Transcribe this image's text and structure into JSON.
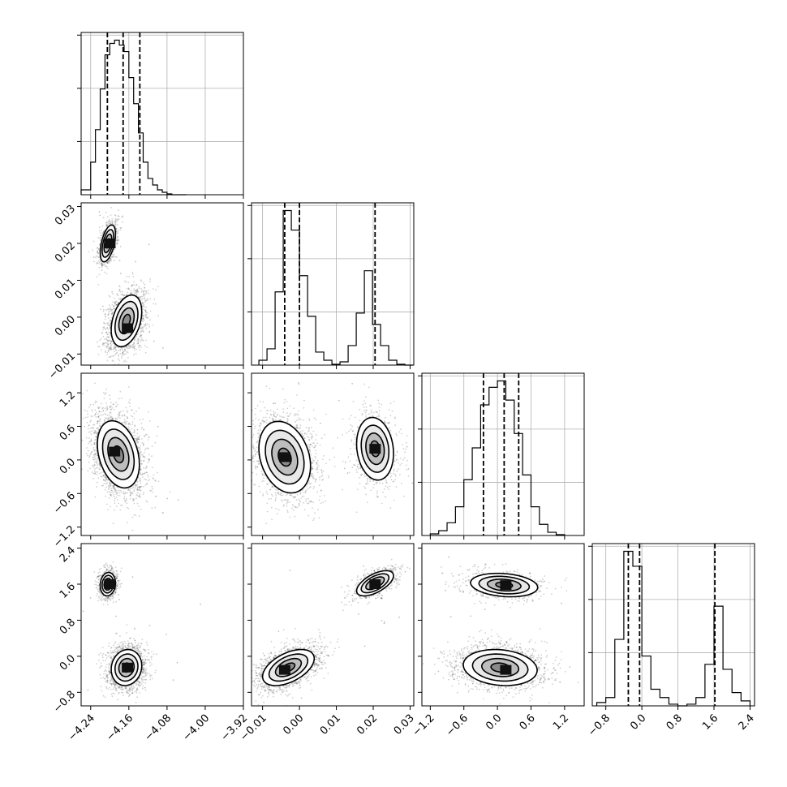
{
  "chart_data": {
    "type": "corner",
    "title": "",
    "parameters": [
      {
        "range": [
          -4.26,
          -3.92
        ],
        "ticks": [
          -4.24,
          -4.16,
          -4.08,
          -4.0,
          -3.92
        ],
        "tick_labels": [
          "−4.24",
          "−4.16",
          "−4.08",
          "−4.00",
          "−3.92"
        ],
        "hist": {
          "bin_edges": [
            -4.26,
            -4.24,
            -4.23,
            -4.22,
            -4.21,
            -4.2,
            -4.19,
            -4.18,
            -4.17,
            -4.16,
            -4.15,
            -4.14,
            -4.13,
            -4.12,
            -4.11,
            -4.1,
            -4.09,
            -4.08,
            -4.07,
            -4.06,
            -4.05,
            -4.04
          ],
          "counts": [
            0.03,
            0.2,
            0.4,
            0.65,
            0.86,
            0.93,
            0.95,
            0.92,
            0.88,
            0.72,
            0.56,
            0.38,
            0.2,
            0.1,
            0.06,
            0.03,
            0.015,
            0.005,
            0,
            0,
            0
          ]
        },
        "quantiles": [
          -4.205,
          -4.172,
          -4.137
        ]
      },
      {
        "range": [
          -0.013,
          0.031
        ],
        "ticks": [
          -0.01,
          0.0,
          0.01,
          0.02,
          0.03
        ],
        "tick_labels": [
          "−0.01",
          "0.00",
          "0.01",
          "0.02",
          "0.03"
        ],
        "hist": {
          "bin_edges": [
            -0.011,
            -0.0088,
            -0.0066,
            -0.0044,
            -0.0022,
            0.0,
            0.0022,
            0.0044,
            0.0066,
            0.0088,
            0.011,
            0.0132,
            0.0154,
            0.0176,
            0.0198,
            0.022,
            0.0242,
            0.0264,
            0.0286,
            0.0308
          ],
          "counts": [
            0.03,
            0.1,
            0.45,
            0.95,
            0.83,
            0.55,
            0.3,
            0.08,
            0.03,
            0.005,
            0.02,
            0.12,
            0.32,
            0.58,
            0.25,
            0.12,
            0.03,
            0.005,
            0
          ]
        },
        "quantiles": [
          -0.004,
          0.0,
          0.0205
        ]
      },
      {
        "range": [
          -1.35,
          1.55
        ],
        "ticks": [
          -1.2,
          -0.6,
          0.0,
          0.6,
          1.2
        ],
        "tick_labels": [
          "−1.2",
          "−0.6",
          "0.0",
          "0.6",
          "1.2"
        ],
        "hist": {
          "bin_edges": [
            -1.2,
            -1.05,
            -0.9,
            -0.75,
            -0.6,
            -0.45,
            -0.3,
            -0.15,
            0.0,
            0.15,
            0.3,
            0.45,
            0.6,
            0.75,
            0.9,
            1.05,
            1.2
          ],
          "counts": [
            0.01,
            0.03,
            0.08,
            0.18,
            0.35,
            0.55,
            0.82,
            0.93,
            0.97,
            0.85,
            0.64,
            0.38,
            0.18,
            0.07,
            0.02,
            0.005
          ]
        },
        "quantiles": [
          -0.25,
          0.12,
          0.38
        ]
      },
      {
        "range": [
          -1.1,
          2.5
        ],
        "ticks": [
          -0.8,
          0.0,
          0.8,
          1.6,
          2.4
        ],
        "tick_labels": [
          "−0.8",
          "0.0",
          "0.8",
          "1.6",
          "2.4"
        ],
        "hist": {
          "bin_edges": [
            -1.0,
            -0.8,
            -0.6,
            -0.4,
            -0.2,
            0.0,
            0.2,
            0.4,
            0.6,
            0.8,
            1.0,
            1.2,
            1.4,
            1.6,
            1.8,
            2.0,
            2.2,
            2.4
          ],
          "counts": [
            0.02,
            0.05,
            0.4,
            0.93,
            0.84,
            0.3,
            0.1,
            0.05,
            0.01,
            0.0,
            0.01,
            0.05,
            0.25,
            0.6,
            0.22,
            0.08,
            0.03
          ]
        },
        "quantiles": [
          -0.3,
          -0.05,
          1.62
        ]
      }
    ],
    "hist_y_ticks": 3,
    "pairs": [
      {
        "row": 1,
        "col": 0,
        "modes": [
          {
            "mean": [
              -4.204,
              0.02
            ],
            "sd": [
              0.008,
              0.0025
            ],
            "rho": 0.5,
            "weight": 0.3,
            "peak": [
              -4.2,
              0.02
            ]
          },
          {
            "mean": [
              -4.165,
              -0.001
            ],
            "sd": [
              0.016,
              0.0035
            ],
            "rho": 0.35,
            "weight": 0.7,
            "peak": [
              -4.163,
              -0.003
            ]
          }
        ]
      },
      {
        "row": 2,
        "col": 0,
        "modes": [
          {
            "mean": [
              -4.182,
              0.1
            ],
            "sd": [
              0.022,
              0.3
            ],
            "rho": -0.3,
            "weight": 1.0,
            "peak": [
              -4.19,
              0.15
            ]
          }
        ]
      },
      {
        "row": 2,
        "col": 1,
        "modes": [
          {
            "mean": [
              -0.004,
              0.05
            ],
            "sd": [
              0.0035,
              0.32
            ],
            "rho": -0.25,
            "weight": 0.7,
            "peak": [
              -0.004,
              0.05
            ]
          },
          {
            "mean": [
              0.0205,
              0.2
            ],
            "sd": [
              0.0025,
              0.28
            ],
            "rho": -0.15,
            "weight": 0.3,
            "peak": [
              0.0205,
              0.2
            ]
          }
        ]
      },
      {
        "row": 3,
        "col": 0,
        "modes": [
          {
            "mean": [
              -4.204,
              1.6
            ],
            "sd": [
              0.008,
              0.13
            ],
            "rho": 0.1,
            "weight": 0.3,
            "peak": [
              -4.2,
              1.6
            ]
          },
          {
            "mean": [
              -4.165,
              -0.25
            ],
            "sd": [
              0.016,
              0.2
            ],
            "rho": 0.1,
            "weight": 0.7,
            "peak": [
              -4.163,
              -0.25
            ]
          }
        ]
      },
      {
        "row": 3,
        "col": 1,
        "modes": [
          {
            "mean": [
              -0.003,
              -0.25
            ],
            "sd": [
              0.0035,
              0.2
            ],
            "rho": 0.5,
            "weight": 0.7,
            "peak": [
              -0.004,
              -0.3
            ]
          },
          {
            "mean": [
              0.0205,
              1.62
            ],
            "sd": [
              0.0025,
              0.14
            ],
            "rho": 0.6,
            "weight": 0.3,
            "peak": [
              0.0205,
              1.6
            ]
          }
        ]
      },
      {
        "row": 3,
        "col": 2,
        "modes": [
          {
            "mean": [
              0.12,
              1.58
            ],
            "sd": [
              0.3,
              0.13
            ],
            "rho": -0.2,
            "weight": 0.3,
            "peak": [
              0.15,
              1.58
            ]
          },
          {
            "mean": [
              0.05,
              -0.25
            ],
            "sd": [
              0.33,
              0.2
            ],
            "rho": -0.15,
            "weight": 0.7,
            "peak": [
              0.15,
              -0.3
            ]
          }
        ]
      }
    ],
    "contour_levels_sigma": [
      0.5,
      1.0,
      1.5,
      2.0
    ],
    "grid": true,
    "legend": "none",
    "xlabel": "",
    "ylabel": ""
  }
}
